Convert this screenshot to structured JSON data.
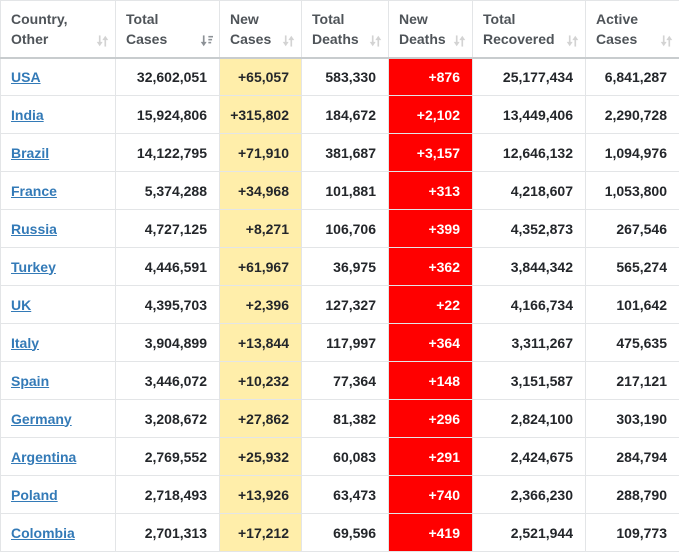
{
  "table": {
    "columns": [
      {
        "key": "country",
        "line1": "Country,",
        "line2": "Other",
        "sort": "unsorted",
        "align": "left"
      },
      {
        "key": "total_cases",
        "line1": "Total",
        "line2": "Cases",
        "sort": "desc",
        "align": "right"
      },
      {
        "key": "new_cases",
        "line1": "New",
        "line2": "Cases",
        "sort": "unsorted",
        "align": "right"
      },
      {
        "key": "total_deaths",
        "line1": "Total",
        "line2": "Deaths",
        "sort": "unsorted",
        "align": "right"
      },
      {
        "key": "new_deaths",
        "line1": "New",
        "line2": "Deaths",
        "sort": "unsorted",
        "align": "right"
      },
      {
        "key": "total_recovered",
        "line1": "Total",
        "line2": "Recovered",
        "sort": "unsorted",
        "align": "right"
      },
      {
        "key": "active_cases",
        "line1": "Active",
        "line2": "Cases",
        "sort": "unsorted",
        "align": "right"
      }
    ],
    "rows": [
      {
        "country": "USA",
        "total_cases": "32,602,051",
        "new_cases": "+65,057",
        "total_deaths": "583,330",
        "new_deaths": "+876",
        "total_recovered": "25,177,434",
        "active_cases": "6,841,287"
      },
      {
        "country": "India",
        "total_cases": "15,924,806",
        "new_cases": "+315,802",
        "total_deaths": "184,672",
        "new_deaths": "+2,102",
        "total_recovered": "13,449,406",
        "active_cases": "2,290,728"
      },
      {
        "country": "Brazil",
        "total_cases": "14,122,795",
        "new_cases": "+71,910",
        "total_deaths": "381,687",
        "new_deaths": "+3,157",
        "total_recovered": "12,646,132",
        "active_cases": "1,094,976"
      },
      {
        "country": "France",
        "total_cases": "5,374,288",
        "new_cases": "+34,968",
        "total_deaths": "101,881",
        "new_deaths": "+313",
        "total_recovered": "4,218,607",
        "active_cases": "1,053,800"
      },
      {
        "country": "Russia",
        "total_cases": "4,727,125",
        "new_cases": "+8,271",
        "total_deaths": "106,706",
        "new_deaths": "+399",
        "total_recovered": "4,352,873",
        "active_cases": "267,546"
      },
      {
        "country": "Turkey",
        "total_cases": "4,446,591",
        "new_cases": "+61,967",
        "total_deaths": "36,975",
        "new_deaths": "+362",
        "total_recovered": "3,844,342",
        "active_cases": "565,274"
      },
      {
        "country": "UK",
        "total_cases": "4,395,703",
        "new_cases": "+2,396",
        "total_deaths": "127,327",
        "new_deaths": "+22",
        "total_recovered": "4,166,734",
        "active_cases": "101,642"
      },
      {
        "country": "Italy",
        "total_cases": "3,904,899",
        "new_cases": "+13,844",
        "total_deaths": "117,997",
        "new_deaths": "+364",
        "total_recovered": "3,311,267",
        "active_cases": "475,635"
      },
      {
        "country": "Spain",
        "total_cases": "3,446,072",
        "new_cases": "+10,232",
        "total_deaths": "77,364",
        "new_deaths": "+148",
        "total_recovered": "3,151,587",
        "active_cases": "217,121"
      },
      {
        "country": "Germany",
        "total_cases": "3,208,672",
        "new_cases": "+27,862",
        "total_deaths": "81,382",
        "new_deaths": "+296",
        "total_recovered": "2,824,100",
        "active_cases": "303,190"
      },
      {
        "country": "Argentina",
        "total_cases": "2,769,552",
        "new_cases": "+25,932",
        "total_deaths": "60,083",
        "new_deaths": "+291",
        "total_recovered": "2,424,675",
        "active_cases": "284,794"
      },
      {
        "country": "Poland",
        "total_cases": "2,718,493",
        "new_cases": "+13,926",
        "total_deaths": "63,473",
        "new_deaths": "+740",
        "total_recovered": "2,366,230",
        "active_cases": "288,790"
      },
      {
        "country": "Colombia",
        "total_cases": "2,701,313",
        "new_cases": "+17,212",
        "total_deaths": "69,596",
        "new_deaths": "+419",
        "total_recovered": "2,521,944",
        "active_cases": "109,773"
      }
    ]
  },
  "icons": {
    "unsorted": "sort-both-icon",
    "desc": "sort-descending-icon"
  },
  "colors": {
    "link_blue": "#337ab7",
    "new_cases_bg": "#FFEEAA",
    "new_deaths_bg": "#FF0000",
    "sort_icon_inactive": "#d3d3d3",
    "sort_icon_active": "#8c9196"
  }
}
